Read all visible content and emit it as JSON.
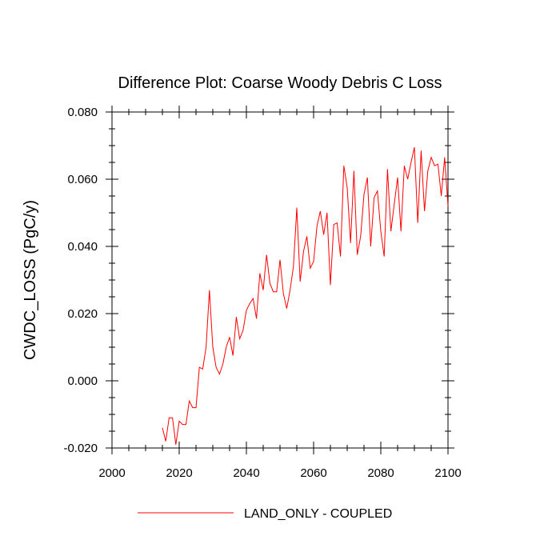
{
  "chart_data": {
    "type": "line",
    "title": "Difference Plot: Coarse Woody Debris C Loss",
    "xlabel": "",
    "ylabel": "CWDC_LOSS  (PgC/y)",
    "xlim": [
      2000,
      2100
    ],
    "ylim": [
      -0.02,
      0.08
    ],
    "x_ticks": [
      2000,
      2020,
      2040,
      2060,
      2080,
      2100
    ],
    "x_tick_labels": [
      "2000",
      "2020",
      "2040",
      "2060",
      "2080",
      "2100"
    ],
    "y_ticks": [
      -0.02,
      0.0,
      0.02,
      0.04,
      0.06,
      0.08
    ],
    "y_tick_labels": [
      "-0.020",
      "0.000",
      "0.020",
      "0.040",
      "0.060",
      "0.080"
    ],
    "legend_position": "bottom-center",
    "series": [
      {
        "name": "LAND_ONLY - COUPLED",
        "color": "#ff0000",
        "x": [
          2015,
          2016,
          2017,
          2018,
          2019,
          2020,
          2021,
          2022,
          2023,
          2024,
          2025,
          2026,
          2027,
          2028,
          2029,
          2030,
          2031,
          2032,
          2033,
          2034,
          2035,
          2036,
          2037,
          2038,
          2039,
          2040,
          2041,
          2042,
          2043,
          2044,
          2045,
          2046,
          2047,
          2048,
          2049,
          2050,
          2051,
          2052,
          2053,
          2054,
          2055,
          2056,
          2057,
          2058,
          2059,
          2060,
          2061,
          2062,
          2063,
          2064,
          2065,
          2066,
          2067,
          2068,
          2069,
          2070,
          2071,
          2072,
          2073,
          2074,
          2075,
          2076,
          2077,
          2078,
          2079,
          2080,
          2081,
          2082,
          2083,
          2084,
          2085,
          2086,
          2087,
          2088,
          2089,
          2090,
          2091,
          2092,
          2093,
          2094,
          2095,
          2096,
          2097,
          2098,
          2099,
          2100
        ],
        "values": [
          -0.014,
          -0.018,
          -0.011,
          -0.011,
          -0.019,
          -0.012,
          -0.013,
          -0.013,
          -0.006,
          -0.008,
          -0.008,
          0.004,
          0.0035,
          0.01,
          0.027,
          0.01,
          0.004,
          0.002,
          0.005,
          0.01,
          0.013,
          0.0075,
          0.019,
          0.0125,
          0.015,
          0.021,
          0.023,
          0.0245,
          0.0185,
          0.032,
          0.027,
          0.0375,
          0.029,
          0.0265,
          0.0265,
          0.036,
          0.026,
          0.0215,
          0.027,
          0.034,
          0.0515,
          0.0295,
          0.0385,
          0.043,
          0.0335,
          0.0355,
          0.046,
          0.0505,
          0.0435,
          0.05,
          0.0285,
          0.0465,
          0.047,
          0.037,
          0.064,
          0.0575,
          0.041,
          0.0625,
          0.0375,
          0.043,
          0.0555,
          0.0605,
          0.04,
          0.0545,
          0.0565,
          0.0445,
          0.037,
          0.063,
          0.0445,
          0.0525,
          0.0605,
          0.0445,
          0.064,
          0.06,
          0.065,
          0.0695,
          0.047,
          0.0685,
          0.0505,
          0.0625,
          0.0665,
          0.064,
          0.0645,
          0.055,
          0.0665,
          0.052
        ]
      }
    ]
  }
}
